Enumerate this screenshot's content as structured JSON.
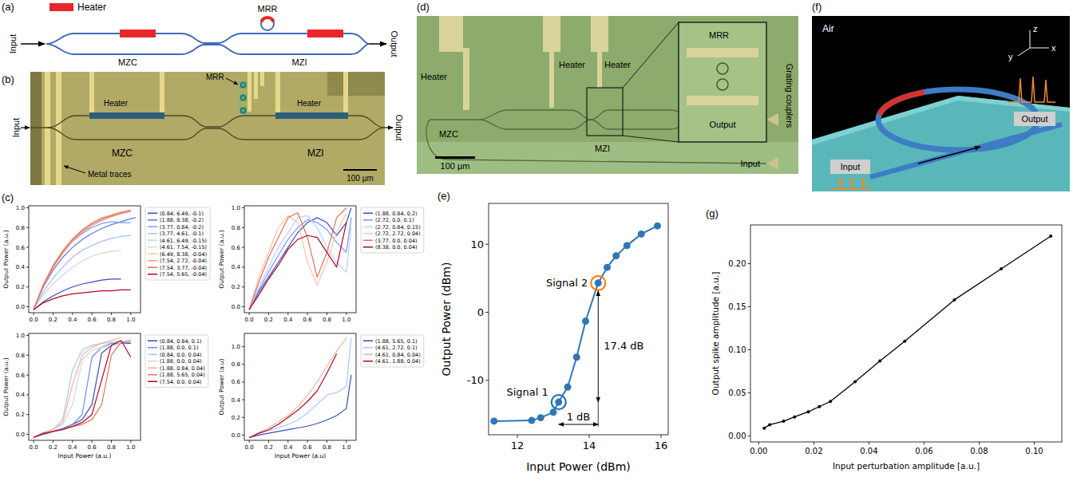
{
  "panel_labels": [
    "(a)",
    "(b)",
    "(c)",
    "(d)",
    "(e)",
    "(f)",
    "(g)"
  ],
  "diagrams": {
    "a": {
      "heater_legend": "Heater",
      "mrr": "MRR",
      "input": "Input",
      "output": "Output",
      "mzc": "MZC",
      "mzi": "MZI"
    },
    "b": {
      "input": "Input",
      "heater_1": "Heater",
      "mrr": "MRR",
      "heater_2": "Heater",
      "output": "Output",
      "mzc": "MZC",
      "mzi": "MZI",
      "metal_traces": "Metal traces",
      "scale_bar": "100 μm"
    },
    "d": {
      "heater_1": "Heater",
      "heater_2": "Heater",
      "heater_3": "Heater",
      "mrr": "MRR",
      "grating_couplers": "Grating couplers",
      "mzc": "MZC",
      "mzi": "MZI",
      "output": "Output",
      "input": "Input",
      "scale_bar": "100 μm"
    },
    "f": {
      "air": "Air",
      "axis_z": "z",
      "axis_y": "y",
      "axis_x": "x",
      "input": "Input",
      "output": "Output"
    }
  },
  "chart_data": [
    {
      "type": "line",
      "y_label": "Output Power (a.u.)",
      "x": [
        0,
        0.1,
        0.2,
        0.3,
        0.4,
        0.5,
        0.6,
        0.7,
        0.8,
        0.9,
        1.0,
        1.05
      ],
      "xlim": [
        -0.05,
        1.1
      ],
      "ylim": [
        -0.06,
        1.02
      ],
      "xticks": [
        {
          "value": 0,
          "label": "0.0"
        },
        {
          "value": 0.2,
          "label": "0.2"
        },
        {
          "value": 0.4,
          "label": "0.4"
        },
        {
          "value": 0.6,
          "label": "0.6"
        },
        {
          "value": 0.8,
          "label": "0.8"
        },
        {
          "value": 1,
          "label": "1.0"
        }
      ],
      "yticks": [
        {
          "value": 0,
          "label": "0.0"
        },
        {
          "value": 0.2,
          "label": "0.2"
        },
        {
          "value": 0.4,
          "label": "0.4"
        },
        {
          "value": 0.6,
          "label": "0.6"
        },
        {
          "value": 0.8,
          "label": "0.8"
        },
        {
          "value": 1,
          "label": "1.0"
        }
      ],
      "grid": false,
      "legend": "right",
      "series": [
        {
          "name": "(0.84, 6.49, -0.1)",
          "color": "#3b4cc0",
          "values": [
            -0.03,
            0.05,
            0.11,
            0.16,
            0.2,
            0.23,
            0.25,
            0.27,
            0.28,
            0.28,
            null,
            null
          ]
        },
        {
          "name": "(1.88, 8.38, -0.2)",
          "color": "#5b7ae5",
          "values": [
            -0.03,
            0.2,
            0.37,
            0.5,
            0.6,
            0.68,
            0.74,
            0.79,
            0.83,
            0.86,
            0.89,
            0.9
          ]
        },
        {
          "name": "(3.77, 0.84, -0.2)",
          "color": "#7da0f9",
          "values": [
            -0.03,
            0.22,
            0.4,
            0.55,
            0.66,
            0.74,
            0.8,
            0.84,
            0.86,
            0.85,
            0.85,
            null
          ]
        },
        {
          "name": "(3.77, 4.61, -0.1)",
          "color": "#a1c0ff",
          "values": [
            -0.03,
            0.15,
            0.29,
            0.4,
            0.5,
            0.57,
            0.62,
            0.66,
            0.69,
            0.71,
            0.72,
            null
          ]
        },
        {
          "name": "(4.61, 6.49, -0.15)",
          "color": "#c3d5f4",
          "values": [
            -0.03,
            0.22,
            0.4,
            0.55,
            0.67,
            0.76,
            0.83,
            0.88,
            0.92,
            0.94,
            0.96,
            null
          ]
        },
        {
          "name": "(4.61, 7.54, -0.15)",
          "color": "#d9d5d2",
          "values": [
            -0.03,
            0.12,
            0.23,
            0.32,
            0.4,
            0.46,
            0.51,
            0.54,
            0.56,
            0.57,
            null,
            null
          ]
        },
        {
          "name": "(6.49, 8.38, -0.04)",
          "color": "#f5c0a7",
          "values": [
            -0.03,
            0.23,
            0.42,
            0.57,
            0.69,
            0.78,
            0.85,
            0.9,
            0.93,
            0.96,
            0.98,
            null
          ]
        },
        {
          "name": "(7.54, 2.72, -0.04)",
          "color": "#f39b7a",
          "values": [
            -0.03,
            0.21,
            0.39,
            0.54,
            0.66,
            0.75,
            0.82,
            0.87,
            0.91,
            0.94,
            0.97,
            null
          ]
        },
        {
          "name": "(7.54, 3.77, -0.04)",
          "color": "#e36c55",
          "values": [
            -0.03,
            0.22,
            0.41,
            0.56,
            0.68,
            0.77,
            0.84,
            0.89,
            0.92,
            0.95,
            0.97,
            null
          ]
        },
        {
          "name": "(7.54, 5.65, -0.04)",
          "color": "#b40426",
          "values": [
            -0.03,
            0.04,
            0.08,
            0.11,
            0.13,
            0.14,
            0.15,
            0.16,
            0.16,
            0.17,
            0.17,
            null
          ]
        }
      ]
    },
    {
      "type": "line",
      "y_label": "Output Power (a.u.)",
      "x": [
        0,
        0.1,
        0.2,
        0.3,
        0.4,
        0.5,
        0.6,
        0.7,
        0.8,
        0.9,
        1.0,
        1.05
      ],
      "xlim": [
        -0.05,
        1.1
      ],
      "ylim": [
        -0.06,
        1.02
      ],
      "xticks": [
        {
          "value": 0,
          "label": "0.0"
        },
        {
          "value": 0.2,
          "label": "0.2"
        },
        {
          "value": 0.4,
          "label": "0.4"
        },
        {
          "value": 0.6,
          "label": "0.6"
        },
        {
          "value": 0.8,
          "label": "0.8"
        },
        {
          "value": 1,
          "label": "1.0"
        }
      ],
      "yticks": [
        {
          "value": 0,
          "label": "0.0"
        },
        {
          "value": 0.2,
          "label": "0.2"
        },
        {
          "value": 0.4,
          "label": "0.4"
        },
        {
          "value": 0.6,
          "label": "0.6"
        },
        {
          "value": 0.8,
          "label": "0.8"
        },
        {
          "value": 1,
          "label": "1.0"
        }
      ],
      "grid": false,
      "legend": "right",
      "series": [
        {
          "name": "(1.88, 0.84, 0.2)",
          "color": "#3b4cc0",
          "values": [
            -0.03,
            0.15,
            0.3,
            0.45,
            0.6,
            0.75,
            0.85,
            0.9,
            0.85,
            0.72,
            0.85,
            1.0
          ]
        },
        {
          "name": "(2.72, 0.0, 0.1)",
          "color": "#7597f6",
          "values": [
            -0.03,
            0.17,
            0.35,
            0.52,
            0.68,
            0.8,
            0.88,
            0.85,
            0.78,
            0.65,
            0.55,
            0.9
          ]
        },
        {
          "name": "(2.72, 0.84, 0.15)",
          "color": "#b9d0f9",
          "values": [
            -0.03,
            0.2,
            0.4,
            0.6,
            0.75,
            0.9,
            0.92,
            0.8,
            0.6,
            0.45,
            0.35,
            0.8
          ]
        },
        {
          "name": "(2.72, 2.72, 0.04)",
          "color": "#f5c4ac",
          "values": [
            -0.03,
            0.3,
            0.55,
            0.8,
            0.92,
            0.85,
            0.45,
            0.22,
            0.45,
            0.75,
            0.95,
            null
          ]
        },
        {
          "name": "(3.77, 0.0, 0.04)",
          "color": "#e67259",
          "values": [
            -0.03,
            0.25,
            0.5,
            0.7,
            0.9,
            0.95,
            0.7,
            0.3,
            0.55,
            0.9,
            1.0,
            null
          ]
        },
        {
          "name": "(8.38, 0.0, 0.04)",
          "color": "#b40426",
          "values": [
            -0.03,
            0.12,
            0.28,
            0.42,
            0.58,
            0.68,
            0.72,
            0.7,
            0.55,
            0.4,
            0.85,
            null
          ]
        }
      ]
    },
    {
      "type": "line",
      "x_label": "Input Power (a.u.)",
      "y_label": "Output Power (a.u.)",
      "x": [
        0,
        0.1,
        0.2,
        0.3,
        0.4,
        0.5,
        0.6,
        0.7,
        0.8,
        0.9,
        1.0,
        1.05
      ],
      "xlim": [
        -0.05,
        1.1
      ],
      "ylim": [
        -0.06,
        1.02
      ],
      "xticks": [
        {
          "value": 0,
          "label": "0.0"
        },
        {
          "value": 0.2,
          "label": "0.2"
        },
        {
          "value": 0.4,
          "label": "0.4"
        },
        {
          "value": 0.6,
          "label": "0.6"
        },
        {
          "value": 0.8,
          "label": "0.8"
        },
        {
          "value": 1,
          "label": "1.0"
        }
      ],
      "yticks": [
        {
          "value": 0,
          "label": "0.0"
        },
        {
          "value": 0.2,
          "label": "0.2"
        },
        {
          "value": 0.4,
          "label": "0.4"
        },
        {
          "value": 0.6,
          "label": "0.6"
        },
        {
          "value": 0.8,
          "label": "0.8"
        },
        {
          "value": 1,
          "label": "1.0"
        }
      ],
      "grid": false,
      "legend": "right",
      "series": [
        {
          "name": "(0.84, 0.84, 0.1)",
          "color": "#3b4cc0",
          "values": [
            -0.03,
            0,
            0.03,
            0.06,
            0.1,
            0.15,
            0.3,
            0.82,
            0.9,
            0.92,
            0.92,
            null
          ]
        },
        {
          "name": "(1.88, 0.0, 0.1)",
          "color": "#6c8ff1",
          "values": [
            -0.03,
            0,
            0.03,
            0.06,
            0.1,
            0.2,
            0.78,
            0.88,
            0.92,
            0.92,
            0.93,
            null
          ]
        },
        {
          "name": "(0.84, 0.0, 0.04)",
          "color": "#aac7fd",
          "values": [
            -0.03,
            0.02,
            0.05,
            0.15,
            0.65,
            0.85,
            0.9,
            0.92,
            0.93,
            0.94,
            null,
            null
          ]
        },
        {
          "name": "(1.88, 0.0, 0.04)",
          "color": "#d9d5d2",
          "values": [
            -0.03,
            0.02,
            0.05,
            0.1,
            0.3,
            0.75,
            0.85,
            0.88,
            0.9,
            0.92,
            null,
            null
          ]
        },
        {
          "name": "(1.88, 0.84, 0.04)",
          "color": "#f7b599",
          "values": [
            -0.03,
            0.02,
            0.05,
            0.12,
            0.5,
            0.8,
            0.88,
            0.92,
            0.95,
            0.98,
            null,
            null
          ]
        },
        {
          "name": "(1.88, 5.65, 0.04)",
          "color": "#e7745b",
          "values": [
            -0.03,
            0.01,
            0.03,
            0.05,
            0.08,
            0.1,
            0.15,
            0.3,
            0.8,
            0.93,
            0.95,
            null
          ]
        },
        {
          "name": "(7.54, 0.0, 0.04)",
          "color": "#b40426",
          "values": [
            -0.03,
            0.01,
            0.03,
            0.05,
            0.08,
            0.12,
            0.2,
            0.55,
            0.9,
            0.95,
            0.78,
            null
          ]
        }
      ]
    },
    {
      "type": "line",
      "x_label": "Input Power (a.u)",
      "y_label": "Output Power (a.u)",
      "x": [
        0,
        0.1,
        0.2,
        0.3,
        0.4,
        0.5,
        0.6,
        0.7,
        0.8,
        0.9,
        1.0,
        1.05
      ],
      "xlim": [
        -0.05,
        1.1
      ],
      "ylim": [
        -0.06,
        1.15
      ],
      "xticks": [
        {
          "value": 0,
          "label": "0.0"
        },
        {
          "value": 0.2,
          "label": "0.2"
        },
        {
          "value": 0.4,
          "label": "0.4"
        },
        {
          "value": 0.6,
          "label": "0.6"
        },
        {
          "value": 0.8,
          "label": "0.8"
        },
        {
          "value": 1,
          "label": "1.0"
        }
      ],
      "yticks": [
        {
          "value": 0,
          "label": "0.0"
        },
        {
          "value": 0.2,
          "label": "0.2"
        },
        {
          "value": 0.4,
          "label": "0.4"
        },
        {
          "value": 0.6,
          "label": "0.6"
        },
        {
          "value": 0.8,
          "label": "0.8"
        },
        {
          "value": 1,
          "label": "1.0"
        }
      ],
      "grid": false,
      "legend": "right",
      "series": [
        {
          "name": "(1.88, 5.65, 0.1)",
          "color": "#3b4cc0",
          "values": [
            -0.03,
            0,
            0.02,
            0.04,
            0.06,
            0.08,
            0.1,
            0.13,
            0.17,
            0.22,
            0.3,
            0.68
          ]
        },
        {
          "name": "(4.61, 2.72, 0.1)",
          "color": "#aac7fd",
          "values": [
            -0.03,
            0.02,
            0.05,
            0.08,
            0.12,
            0.17,
            0.25,
            0.35,
            0.45,
            0.48,
            0.55,
            1.1
          ]
        },
        {
          "name": "(4.61, 0.84, 0.04)",
          "color": "#f7b599",
          "values": [
            -0.03,
            0.03,
            0.08,
            0.15,
            0.22,
            0.32,
            0.45,
            0.6,
            0.78,
            0.95,
            1.1,
            null
          ]
        },
        {
          "name": "(4.61, 1.88, 0.04)",
          "color": "#b40426",
          "values": [
            -0.03,
            0.02,
            0.06,
            0.12,
            0.2,
            0.28,
            0.38,
            0.5,
            0.7,
            0.92,
            null,
            null
          ]
        }
      ]
    },
    {
      "type": "line",
      "x_label": "Input Power (dBm)",
      "y_label": "Output Power (dBm)",
      "x": [
        11.35,
        12.4,
        12.65,
        13.0,
        13.15,
        13.4,
        13.65,
        13.9,
        14.25,
        14.5,
        14.75,
        15.05,
        15.45,
        15.9
      ],
      "xlim": [
        11.2,
        16.2
      ],
      "ylim": [
        -18,
        16
      ],
      "xticks": [
        12,
        14,
        16
      ],
      "yticks": [
        -10,
        0,
        10
      ],
      "grid": false,
      "series": [
        {
          "color": "#2f77b4",
          "marker": "circle",
          "line_style": "solid",
          "values": [
            -16.0,
            -15.9,
            -15.5,
            -14.7,
            -13.2,
            -11.0,
            -6.6,
            -1.3,
            4.3,
            6.6,
            8.3,
            9.8,
            11.5,
            12.7
          ]
        }
      ],
      "annotations": [
        {
          "text": "Signal 1",
          "x": 13.15,
          "y": -13.2
        },
        {
          "text": "Signal 2",
          "x": 14.25,
          "y": 4.3
        },
        {
          "text": "17.4 dB"
        },
        {
          "text": "1 dB"
        }
      ]
    },
    {
      "type": "line",
      "x_label": "Input perturbation amplitude [a.u.]",
      "y_label": "Output spike amplitude [a.u.]",
      "x": [
        0.002,
        0.004,
        0.009,
        0.013,
        0.018,
        0.022,
        0.026,
        0.035,
        0.044,
        0.053,
        0.071,
        0.088,
        0.106
      ],
      "xlim": [
        -0.003,
        0.11
      ],
      "ylim": [
        -0.007,
        0.245
      ],
      "xticks": [
        {
          "value": 0,
          "label": "0.00"
        },
        {
          "value": 0.02,
          "label": "0.02"
        },
        {
          "value": 0.04,
          "label": "0.04"
        },
        {
          "value": 0.06,
          "label": "0.06"
        },
        {
          "value": 0.08,
          "label": "0.08"
        },
        {
          "value": 0.1,
          "label": "0.10"
        }
      ],
      "yticks": [
        {
          "value": 0,
          "label": "0.00"
        },
        {
          "value": 0.05,
          "label": "0.05"
        },
        {
          "value": 0.1,
          "label": "0.10"
        },
        {
          "value": 0.15,
          "label": "0.15"
        },
        {
          "value": 0.2,
          "label": "0.20"
        }
      ],
      "grid": false,
      "series": [
        {
          "color": "#000000",
          "marker": "circle",
          "line_style": "solid",
          "values": [
            0.009,
            0.013,
            0.017,
            0.022,
            0.028,
            0.034,
            0.04,
            0.063,
            0.087,
            0.11,
            0.158,
            0.194,
            0.232
          ]
        }
      ]
    }
  ]
}
